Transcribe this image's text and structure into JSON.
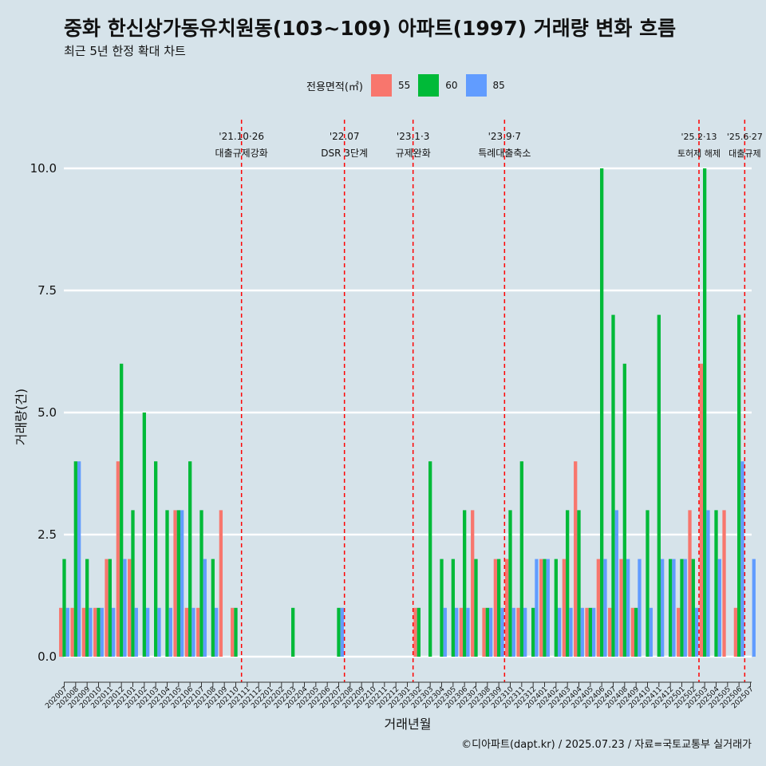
{
  "title": "중화 한신상가동유치원동(103~109) 아파트(1997) 거래량 변화 흐름",
  "subtitle": "최근 5년 한정 확대 차트",
  "caption": "©디아파트(dapt.kr) / 2025.07.23 / 자료=국토교통부 실거래가",
  "legend": {
    "title": "전용면적(㎡)",
    "items": [
      {
        "label": "55",
        "color": "#f8766d"
      },
      {
        "label": "60",
        "color": "#00ba38"
      },
      {
        "label": "85",
        "color": "#619cff"
      }
    ]
  },
  "chart_data": {
    "type": "bar",
    "xlabel": "거래년월",
    "ylabel": "거래량(건)",
    "ylim": [
      0,
      10
    ],
    "yticks": [
      0,
      2.5,
      5,
      7.5,
      10
    ],
    "ytick_labels": [
      "0.0",
      "2.5",
      "5.0",
      "7.5",
      "10.0"
    ],
    "grid": true,
    "legend_position": "top",
    "categories": [
      "202007",
      "202008",
      "202009",
      "202010",
      "202011",
      "202012",
      "202101",
      "202102",
      "202103",
      "202104",
      "202105",
      "202106",
      "202107",
      "202108",
      "202109",
      "202110",
      "202111",
      "202112",
      "202201",
      "202202",
      "202203",
      "202204",
      "202205",
      "202206",
      "202207",
      "202208",
      "202209",
      "202210",
      "202211",
      "202212",
      "202301",
      "202302",
      "202303",
      "202304",
      "202305",
      "202306",
      "202307",
      "202308",
      "202309",
      "202310",
      "202311",
      "202312",
      "202401",
      "202402",
      "202403",
      "202404",
      "202405",
      "202406",
      "202407",
      "202408",
      "202409",
      "202410",
      "202411",
      "202412",
      "202501",
      "202502",
      "202503",
      "202504",
      "202505",
      "202506",
      "202507"
    ],
    "series": [
      {
        "name": "55",
        "color": "#f8766d",
        "values": [
          1,
          1,
          1,
          1,
          2,
          4,
          2,
          0,
          0,
          0,
          3,
          1,
          1,
          0,
          3,
          1,
          0,
          0,
          0,
          0,
          0,
          0,
          0,
          0,
          0,
          0,
          0,
          0,
          0,
          0,
          0,
          1,
          0,
          0,
          0,
          1,
          3,
          1,
          2,
          2,
          1,
          0,
          2,
          0,
          2,
          4,
          1,
          2,
          1,
          2,
          1,
          0,
          0,
          0,
          1,
          3,
          6,
          0,
          3,
          1,
          0
        ]
      },
      {
        "name": "60",
        "color": "#00ba38",
        "values": [
          2,
          4,
          2,
          1,
          2,
          6,
          3,
          5,
          4,
          3,
          3,
          4,
          3,
          2,
          0,
          1,
          0,
          0,
          0,
          0,
          1,
          0,
          0,
          0,
          1,
          0,
          0,
          0,
          0,
          0,
          0,
          1,
          4,
          2,
          2,
          3,
          2,
          1,
          2,
          3,
          4,
          1,
          2,
          2,
          3,
          3,
          1,
          10,
          7,
          6,
          1,
          3,
          7,
          2,
          2,
          2,
          10,
          3,
          0,
          7,
          0
        ]
      },
      {
        "name": "85",
        "color": "#619cff",
        "values": [
          1,
          4,
          1,
          1,
          1,
          2,
          1,
          1,
          1,
          1,
          3,
          1,
          2,
          1,
          0,
          0,
          0,
          0,
          0,
          0,
          0,
          0,
          0,
          0,
          1,
          0,
          0,
          0,
          0,
          0,
          0,
          0,
          0,
          1,
          1,
          1,
          0,
          1,
          1,
          1,
          1,
          2,
          2,
          1,
          1,
          1,
          1,
          2,
          3,
          2,
          2,
          1,
          2,
          2,
          2,
          1,
          3,
          2,
          0,
          4,
          2
        ]
      }
    ],
    "events": [
      {
        "after": "202110",
        "label_top": "'21.10·26",
        "label_bottom": "대출규제강화"
      },
      {
        "after": "202207",
        "label_top": "'22.07",
        "label_bottom": "DSR 3단계"
      },
      {
        "after": "202301",
        "label_top": "'23.1·3",
        "label_bottom": "규제완화"
      },
      {
        "after": "202309",
        "label_top": "'23.9·7",
        "label_bottom": "특례대출축소"
      },
      {
        "after": "202502",
        "label_top": "'25.2·13",
        "label_bottom": "토허제 해제"
      },
      {
        "after": "202506",
        "label_top": "'25.6·27",
        "label_bottom": "대출규제"
      }
    ]
  }
}
